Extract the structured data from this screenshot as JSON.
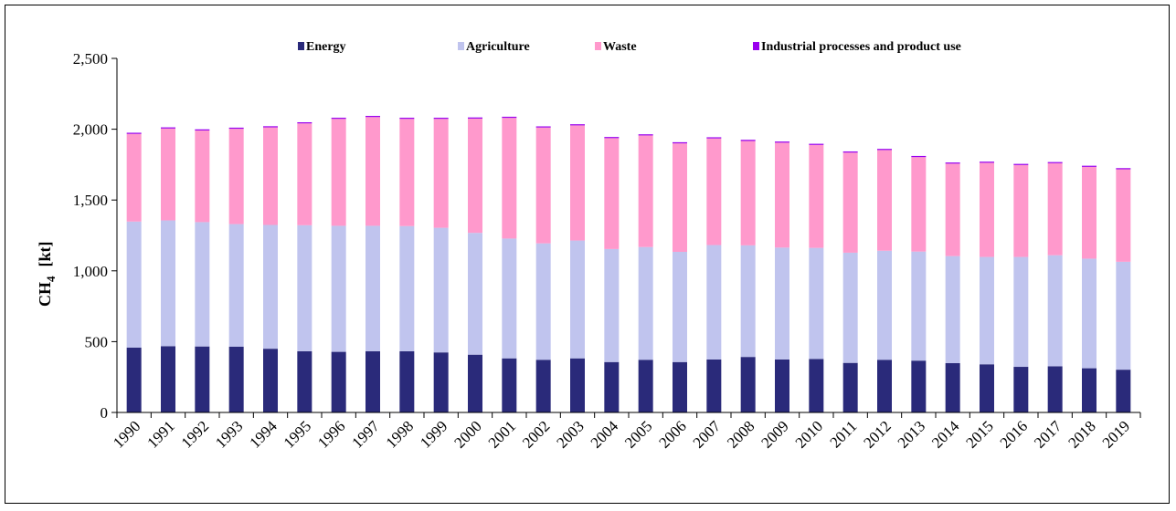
{
  "chart_data": {
    "type": "bar",
    "stacked": true,
    "categories": [
      "1990",
      "1991",
      "1992",
      "1993",
      "1994",
      "1995",
      "1996",
      "1997",
      "1998",
      "1999",
      "2000",
      "2001",
      "2002",
      "2003",
      "2004",
      "2005",
      "2006",
      "2007",
      "2008",
      "2009",
      "2010",
      "2011",
      "2012",
      "2013",
      "2014",
      "2015",
      "2016",
      "2017",
      "2018",
      "2019"
    ],
    "series": [
      {
        "name": "Energy",
        "color": "#2a2a7a",
        "values": [
          458,
          468,
          466,
          464,
          450,
          432,
          428,
          432,
          432,
          424,
          408,
          382,
          372,
          382,
          356,
          372,
          356,
          374,
          392,
          374,
          378,
          350,
          372,
          366,
          348,
          340,
          322,
          326,
          312,
          302
        ]
      },
      {
        "name": "Agriculture",
        "color": "#c0c4ee",
        "values": [
          890,
          888,
          878,
          866,
          874,
          890,
          890,
          886,
          884,
          880,
          860,
          846,
          822,
          832,
          798,
          796,
          778,
          808,
          788,
          790,
          784,
          778,
          770,
          770,
          756,
          758,
          776,
          784,
          774,
          762
        ]
      },
      {
        "name": "Waste",
        "color": "#ff99cc",
        "values": [
          619,
          649,
          647,
          673,
          689,
          719,
          755,
          768,
          757,
          769,
          807,
          852,
          818,
          813,
          783,
          788,
          766,
          753,
          737,
          741,
          727,
          707,
          711,
          667,
          653,
          665,
          649,
          650,
          648,
          653
        ]
      },
      {
        "name": "Industrial processes and product use",
        "color": "#9900ee",
        "values": [
          8,
          8,
          8,
          8,
          8,
          8,
          8,
          8,
          8,
          8,
          8,
          8,
          8,
          8,
          8,
          8,
          8,
          8,
          8,
          8,
          8,
          8,
          8,
          8,
          8,
          8,
          8,
          8,
          8,
          8
        ]
      }
    ],
    "yticks": [
      "0",
      "500",
      "1,000",
      "1,500",
      "2,000",
      "2,500"
    ],
    "ylim": [
      0,
      2500
    ],
    "ylabel_main": "CH",
    "ylabel_sub": "4",
    "ylabel_unit": "[kt]",
    "legend_position": "top"
  }
}
